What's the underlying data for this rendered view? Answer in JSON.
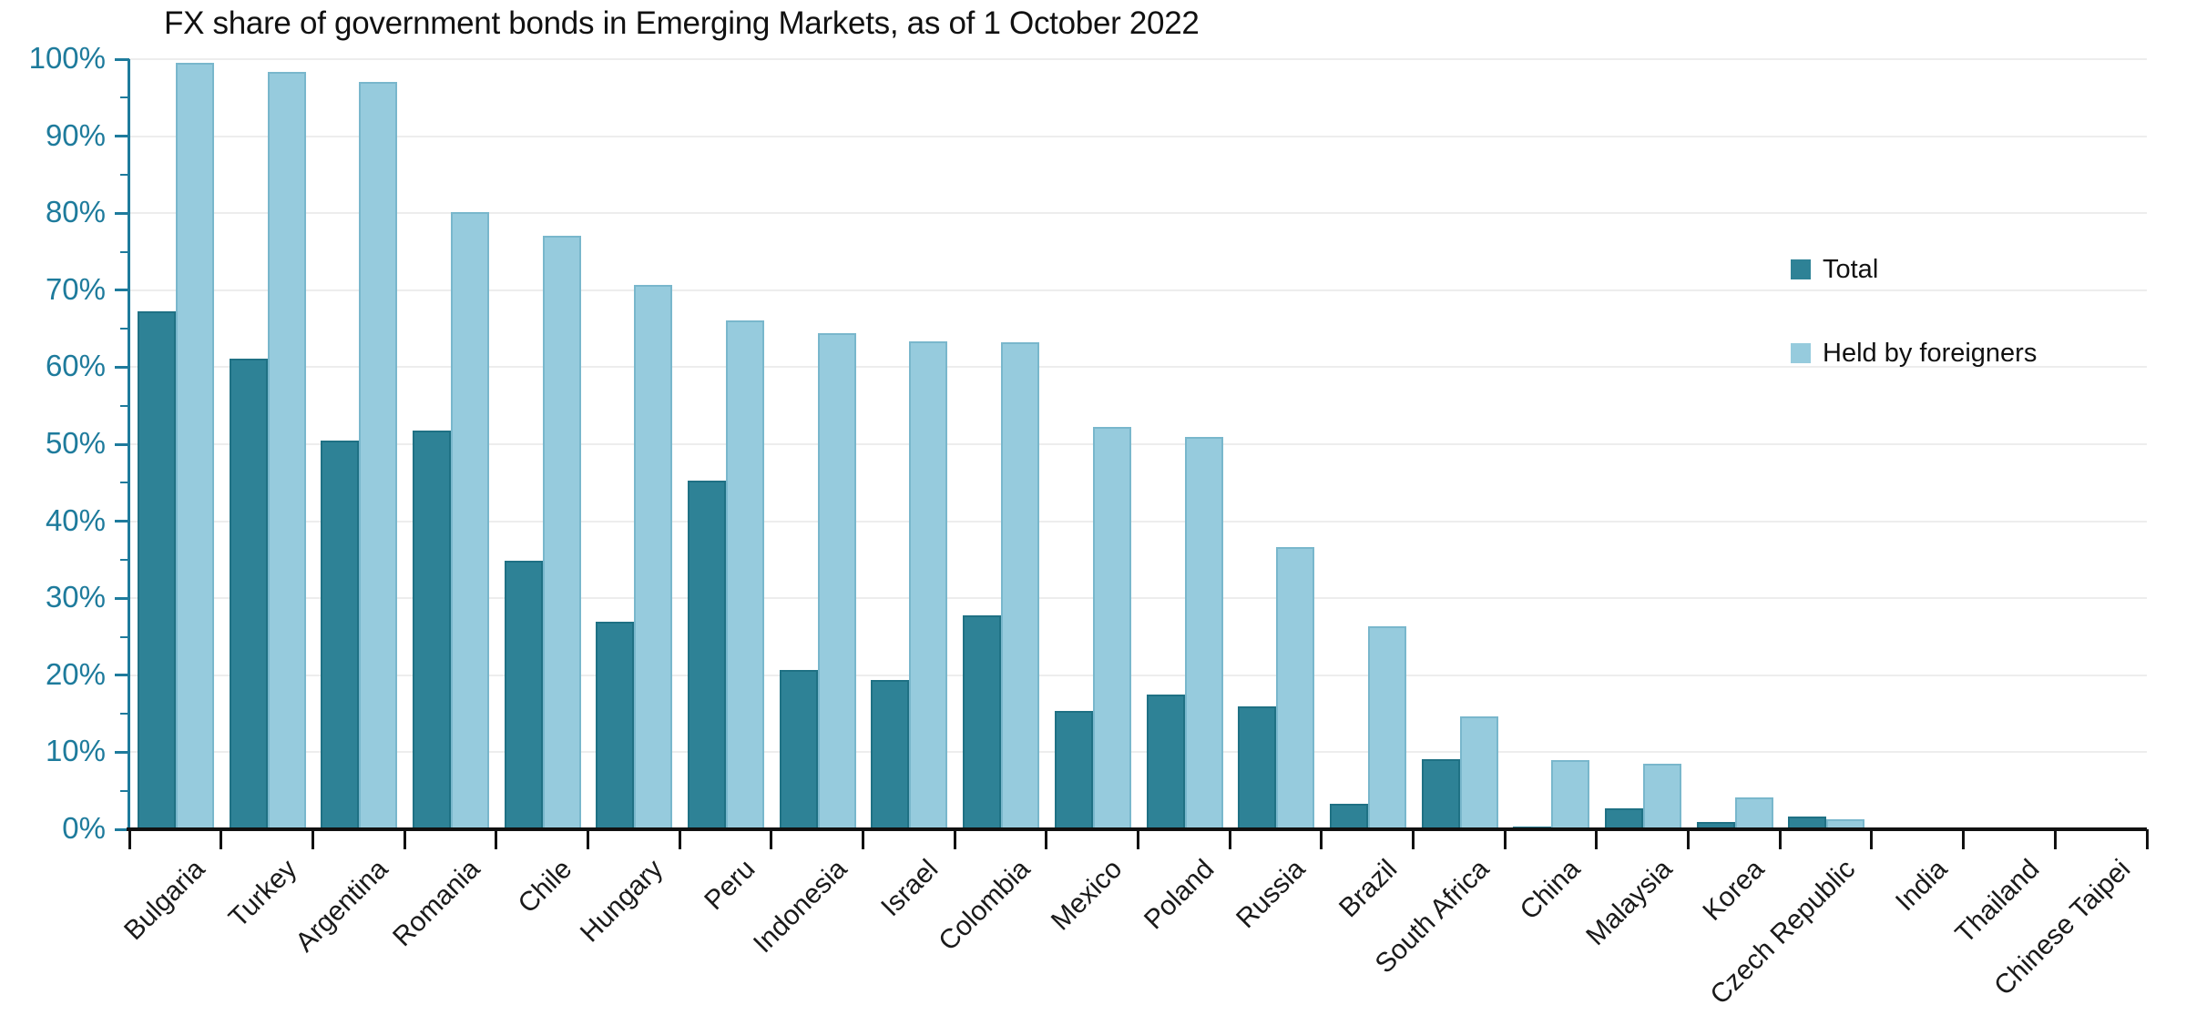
{
  "title": "FX share of government bonds in Emerging Markets, as of 1 October 2022",
  "legend": [
    {
      "label": "Total",
      "color": "#2e8296"
    },
    {
      "label": "Held by foreigners",
      "color": "#96cbdd"
    }
  ],
  "colors": {
    "total_bar": "#2e8296",
    "total_bar_edge": "#1f7184",
    "foreign_bar": "#96cbdd",
    "foreign_bar_edge": "#79b7cc",
    "axis_teal": "#1e7b9c",
    "axis_black": "#111111",
    "gridline": "#ededed",
    "text": "#1a1a1a"
  },
  "y_axis": {
    "tick_labels": [
      "0%",
      "10%",
      "20%",
      "30%",
      "40%",
      "50%",
      "60%",
      "70%",
      "80%",
      "90%",
      "100%"
    ]
  },
  "chart_data": {
    "type": "bar",
    "title": "FX share of government bonds in Emerging Markets, as of 1 October 2022",
    "categories": [
      "Bulgaria",
      "Turkey",
      "Argentina",
      "Romania",
      "Chile",
      "Hungary",
      "Peru",
      "Indonesia",
      "Israel",
      "Colombia",
      "Mexico",
      "Poland",
      "Russia",
      "Brazil",
      "South Africa",
      "China",
      "Malaysia",
      "Korea",
      "Czech Republic",
      "India",
      "Thailand",
      "Chinese Taipei"
    ],
    "series": [
      {
        "name": "Total",
        "values": [
          67.3,
          61.1,
          50.5,
          51.8,
          34.9,
          27.0,
          45.3,
          20.7,
          19.4,
          27.8,
          15.4,
          17.5,
          15.9,
          3.3,
          9.1,
          0.3,
          2.7,
          1.0,
          1.6,
          0,
          0,
          0
        ]
      },
      {
        "name": "Held by foreigners",
        "values": [
          99.5,
          98.3,
          97.1,
          80.2,
          77.1,
          70.7,
          66.1,
          64.4,
          63.4,
          63.2,
          52.2,
          50.9,
          36.6,
          26.4,
          14.6,
          9.0,
          8.5,
          4.1,
          1.3,
          0,
          0,
          0
        ]
      }
    ],
    "xlabel": "",
    "ylabel": "",
    "ylim": [
      0,
      100
    ],
    "y_tick_step": 10,
    "grid": true,
    "legend_position": "right"
  }
}
